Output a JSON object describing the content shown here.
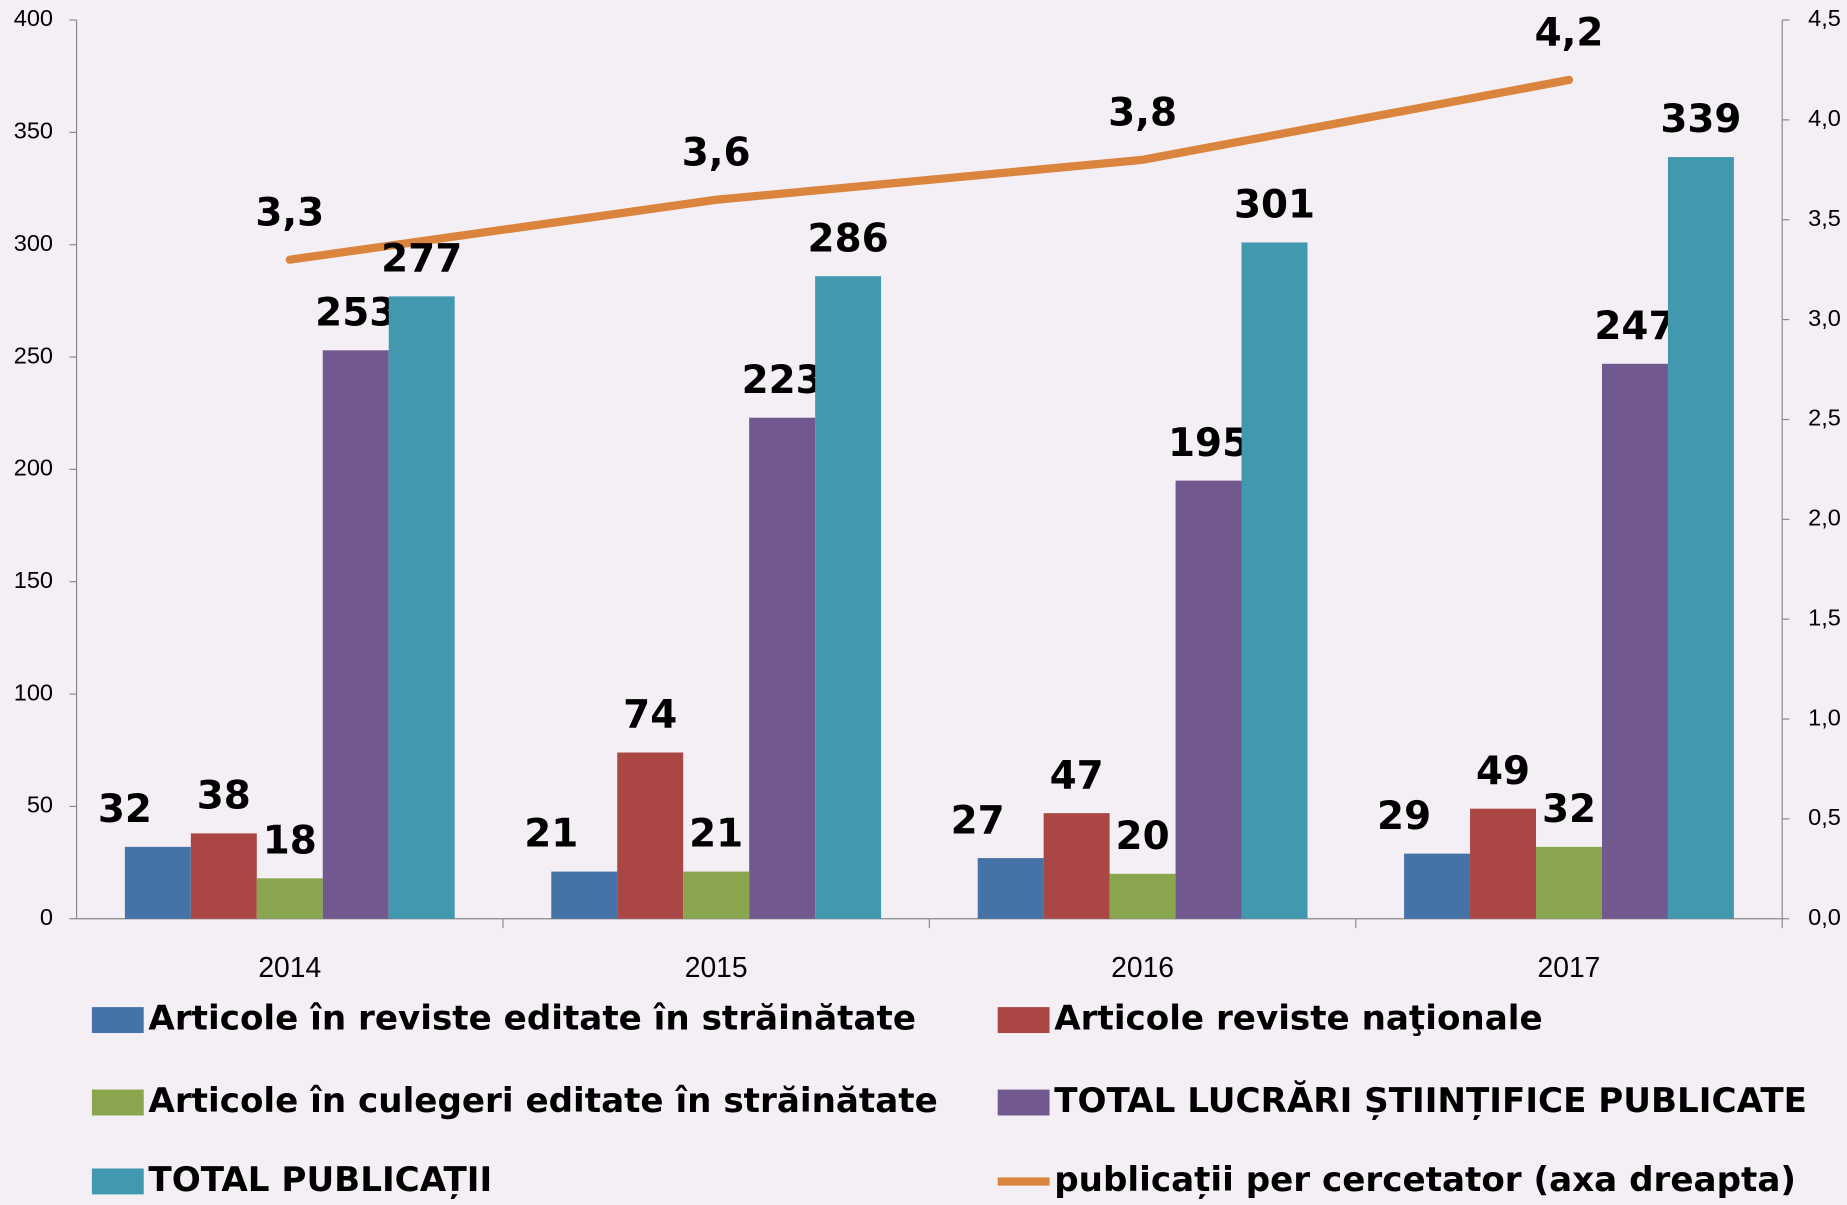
{
  "chart_data": {
    "type": "bar",
    "categories": [
      "2014",
      "2015",
      "2016",
      "2017"
    ],
    "series": [
      {
        "name": "Articole în reviste editate în străinătate",
        "color": "#4572a7",
        "values": [
          32,
          21,
          27,
          29
        ]
      },
      {
        "name": "Articole reviste naţionale",
        "color": "#aa4643",
        "values": [
          38,
          74,
          47,
          49
        ]
      },
      {
        "name": "Articole în culegeri editate în străinătate",
        "color": "#89a54e",
        "values": [
          18,
          21,
          20,
          32
        ]
      },
      {
        "name": "TOTAL LUCRĂRI ȘTIINȚIFICE PUBLICATE",
        "color": "#71588f",
        "values": [
          253,
          223,
          195,
          247
        ]
      },
      {
        "name": "TOTAL PUBLICAȚII",
        "color": "#4198af",
        "values": [
          277,
          286,
          301,
          339
        ]
      },
      {
        "name": "publicații per cercetator (axa dreapta)",
        "color": "#db843d",
        "type": "line",
        "axis": "y2",
        "values": [
          3.3,
          3.6,
          3.8,
          4.2
        ],
        "value_labels": [
          "3,3",
          "3,6",
          "3,8",
          "4,2"
        ]
      }
    ],
    "ylim": [
      0,
      400
    ],
    "yticks": [
      0,
      50,
      100,
      150,
      200,
      250,
      300,
      350,
      400
    ],
    "y2lim": [
      0,
      4.5
    ],
    "y2ticks": [
      {
        "value": 0,
        "label": "0,0"
      },
      {
        "value": 0.5,
        "label": "0,5"
      },
      {
        "value": 1,
        "label": "1,0"
      },
      {
        "value": 1.5,
        "label": "1,5"
      },
      {
        "value": 2,
        "label": "2,0"
      },
      {
        "value": 2.5,
        "label": "2,5"
      },
      {
        "value": 3,
        "label": "3,0"
      },
      {
        "value": 3.5,
        "label": "3,5"
      },
      {
        "value": 4,
        "label": "4,0"
      },
      {
        "value": 4.5,
        "label": "4,5"
      }
    ],
    "grid": false
  }
}
